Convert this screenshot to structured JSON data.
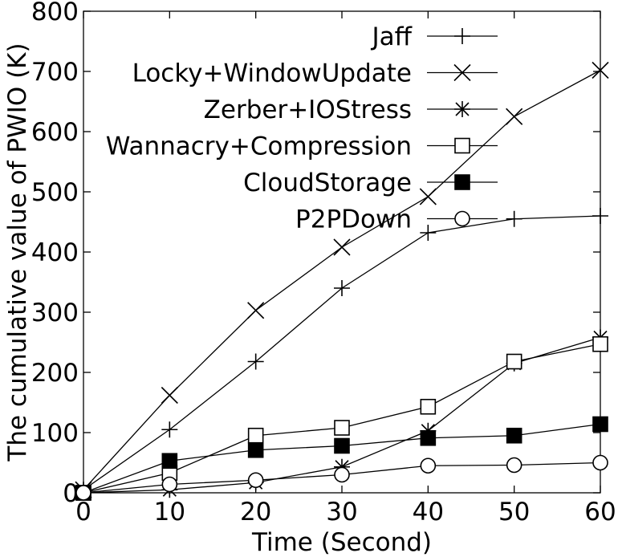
{
  "chart_data": {
    "type": "line",
    "xlabel": "Time (Second)",
    "ylabel": "The cumulative value of PWIO (K)",
    "xlim": [
      0,
      60
    ],
    "ylim": [
      0,
      800
    ],
    "x_ticks": [
      0,
      10,
      20,
      30,
      40,
      50,
      60
    ],
    "y_ticks": [
      0,
      100,
      200,
      300,
      400,
      500,
      600,
      700,
      800
    ],
    "grid": false,
    "legend_position": "top-right",
    "x": [
      0,
      10,
      20,
      30,
      40,
      50,
      60
    ],
    "series": [
      {
        "name": "Jaff",
        "marker": "plus",
        "values": [
          5,
          105,
          218,
          340,
          432,
          455,
          460
        ]
      },
      {
        "name": "Locky+WindowUpdate",
        "marker": "cross",
        "values": [
          5,
          162,
          303,
          408,
          492,
          625,
          702
        ]
      },
      {
        "name": "Zerber+IOStress",
        "marker": "asterisk",
        "values": [
          0,
          5,
          17,
          43,
          103,
          215,
          258
        ]
      },
      {
        "name": "Wannacry+Compression",
        "marker": "open-square",
        "values": [
          0,
          33,
          95,
          108,
          143,
          218,
          247
        ]
      },
      {
        "name": "CloudStorage",
        "marker": "filled-square",
        "values": [
          0,
          53,
          71,
          78,
          91,
          95,
          114
        ]
      },
      {
        "name": "P2PDown",
        "marker": "open-circle",
        "values": [
          0,
          14,
          21,
          30,
          45,
          46,
          50
        ]
      }
    ]
  }
}
